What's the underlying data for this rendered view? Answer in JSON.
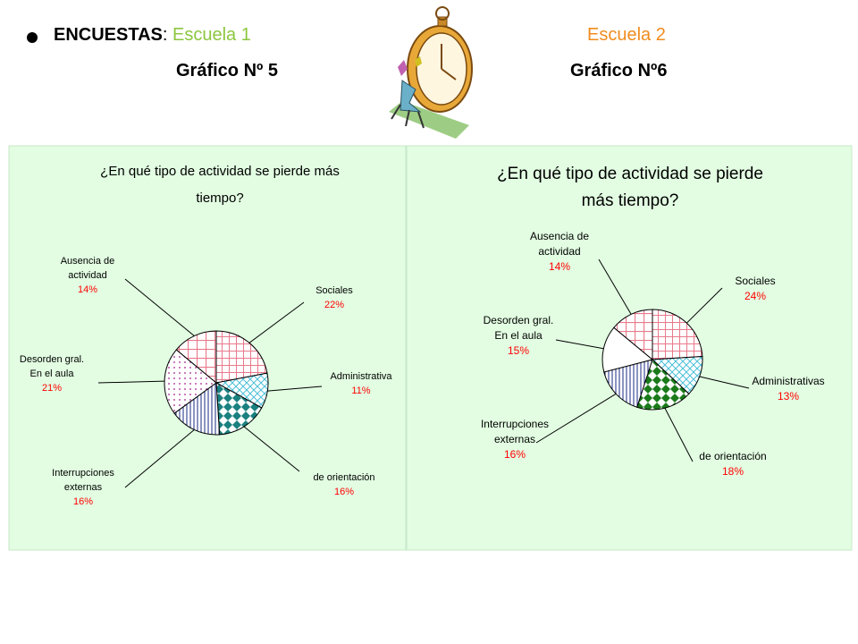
{
  "header": {
    "prefix": "ENCUESTAS",
    "colon": ": ",
    "school1": "Escuela 1",
    "school2": "Escuela 2",
    "graph_left": "Gráfico Nº 5",
    "graph_right": "Gráfico Nº6"
  },
  "colors": {
    "panel_bg": "#e2fde2",
    "panel_border": "#c8e8c8",
    "label_text": "#000000",
    "percent_text": "#ff0000",
    "school1": "#8cc63e",
    "school2": "#f08c1e",
    "slice_pink": "#e87a8c",
    "slice_cyan": "#4cc0d8",
    "slice_teal": "#1a8080",
    "slice_green": "#1a7a1a",
    "slice_navy": "#1a2a80",
    "slice_magenta": "#a0208c"
  },
  "clipart_icon": "stopwatch-clipart-icon",
  "chart_data": [
    {
      "type": "pie",
      "title": "¿En qué tipo de actividad se pierde más tiempo?",
      "title_lines": [
        "¿En qué tipo de actividad se pierde más",
        "tiempo?"
      ],
      "slices": [
        {
          "label": "Sociales",
          "label_lines": [
            "Sociales"
          ],
          "percent": "22%",
          "value": 22,
          "pattern": "pink-grid"
        },
        {
          "label": "Administrativa",
          "label_lines": [
            "Administrativa"
          ],
          "percent": "11%",
          "value": 11,
          "pattern": "cyan-diag"
        },
        {
          "label": "de orientación",
          "label_lines": [
            "de orientación"
          ],
          "percent": "16%",
          "value": 16,
          "pattern": "teal-diamond"
        },
        {
          "label": "Interrupciones externas",
          "label_lines": [
            "Interrupciones",
            "externas"
          ],
          "percent": "16%",
          "value": 16,
          "pattern": "navy-vlines"
        },
        {
          "label": "Desorden gral. En el aula",
          "label_lines": [
            "Desorden gral.",
            "En el aula"
          ],
          "percent": "21%",
          "value": 21,
          "pattern": "magenta-dots"
        },
        {
          "label": "Ausencia de actividad",
          "label_lines": [
            "Ausencia de",
            "actividad"
          ],
          "percent": "14%",
          "value": 14,
          "pattern": "pink-cross"
        }
      ]
    },
    {
      "type": "pie",
      "title": "¿En qué tipo de actividad se pierde más tiempo?",
      "title_lines": [
        "¿En qué tipo de actividad se pierde",
        "más tiempo?"
      ],
      "slices": [
        {
          "label": "Sociales",
          "label_lines": [
            "Sociales"
          ],
          "percent": "24%",
          "value": 24,
          "pattern": "pink-grid"
        },
        {
          "label": "Administrativas",
          "label_lines": [
            "Administrativas"
          ],
          "percent": "13%",
          "value": 13,
          "pattern": "cyan-diag"
        },
        {
          "label": "de orientación",
          "label_lines": [
            "de orientación"
          ],
          "percent": "18%",
          "value": 18,
          "pattern": "green-diamond"
        },
        {
          "label": "Interrupciones externas",
          "label_lines": [
            "Interrupciones",
            "externas"
          ],
          "percent": "16%",
          "value": 16,
          "pattern": "navy-vlines"
        },
        {
          "label": "Desorden gral. En el aula",
          "label_lines": [
            "Desorden gral.",
            "En el aula"
          ],
          "percent": "15%",
          "value": 15,
          "pattern": "white"
        },
        {
          "label": "Ausencia de actividad",
          "label_lines": [
            "Ausencia de",
            "actividad"
          ],
          "percent": "14%",
          "value": 14,
          "pattern": "pink-cross"
        }
      ]
    }
  ]
}
